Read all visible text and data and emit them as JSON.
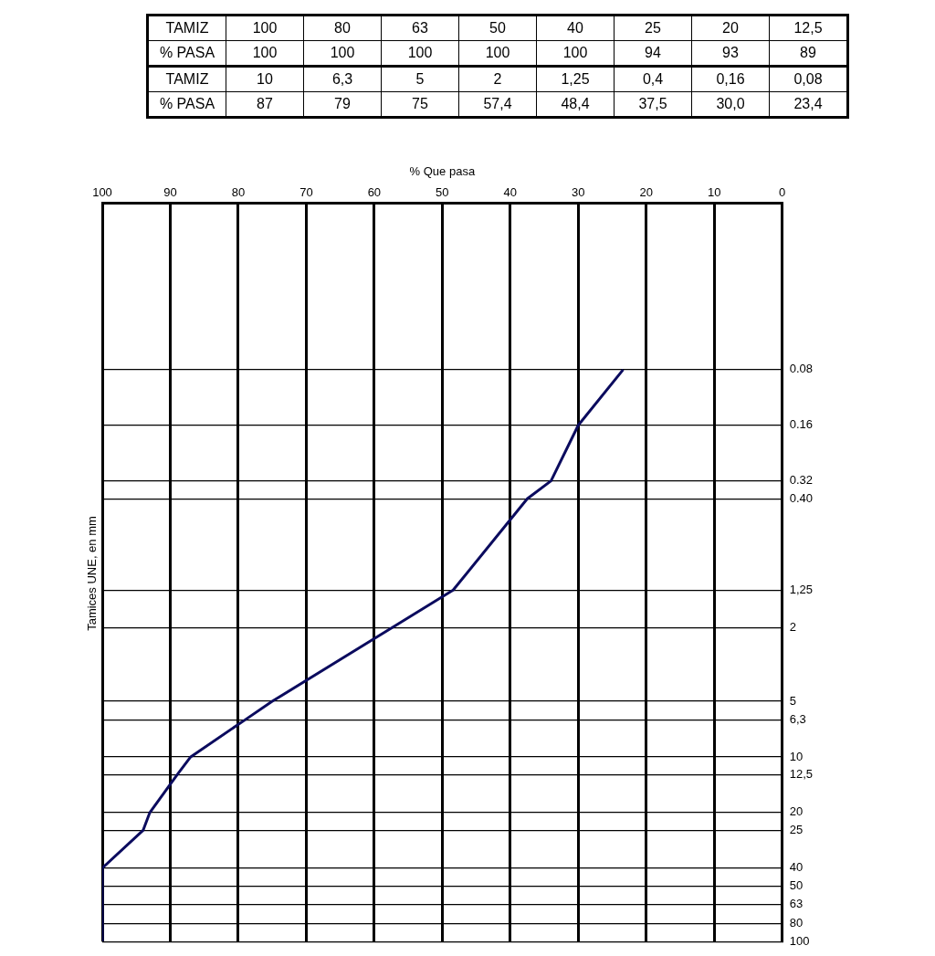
{
  "chart_data": [
    {
      "type": "other",
      "annotations": [
        "TAMIZ",
        "100",
        "80",
        "63",
        "50",
        "40",
        "25",
        "20",
        "12,5",
        "% PASA",
        "100",
        "100",
        "100",
        "100",
        "100",
        "94",
        "93",
        "89",
        "TAMIZ",
        "10",
        "6,3",
        "5",
        "2",
        "1,25",
        "0,4",
        "0,16",
        "0,08",
        "% PASA",
        "87",
        "79",
        "75",
        "57,4",
        "48,4",
        "37,5",
        "30,0",
        "23,4"
      ]
    },
    {
      "type": "line",
      "xlabel": "% Que pasa",
      "ylabel": "Tamices UNE, en mm",
      "x": [
        100,
        100,
        100,
        100,
        100,
        94,
        93,
        89,
        87,
        79,
        75,
        57.4,
        48.4,
        37.5,
        34,
        30.0,
        23.4
      ],
      "values": [
        100,
        80,
        63,
        50,
        40,
        25,
        20,
        12.5,
        10,
        6.3,
        5,
        2,
        1.25,
        0.4,
        0.32,
        0.16,
        0.08
      ],
      "color": "#0b0b5e",
      "marker": "none",
      "line_style": "solid",
      "legend": false,
      "grid": true,
      "log": "y",
      "xlim": [
        100,
        0
      ],
      "xticks": [
        100,
        90,
        80,
        70,
        60,
        50,
        40,
        30,
        20,
        10,
        0
      ],
      "ylim": [
        100,
        0.01
      ],
      "yticks": [
        {
          "value": 0.08,
          "label": "0.08"
        },
        {
          "value": 0.16,
          "label": "0.16"
        },
        {
          "value": 0.32,
          "label": "0.32"
        },
        {
          "value": 0.4,
          "label": "0.40"
        },
        {
          "value": 1.25,
          "label": "1,25"
        },
        2,
        5,
        {
          "value": 6.3,
          "label": "6,3"
        },
        10,
        {
          "value": 12.5,
          "label": "12,5"
        },
        20,
        25,
        40,
        50,
        63,
        80,
        100
      ]
    }
  ]
}
